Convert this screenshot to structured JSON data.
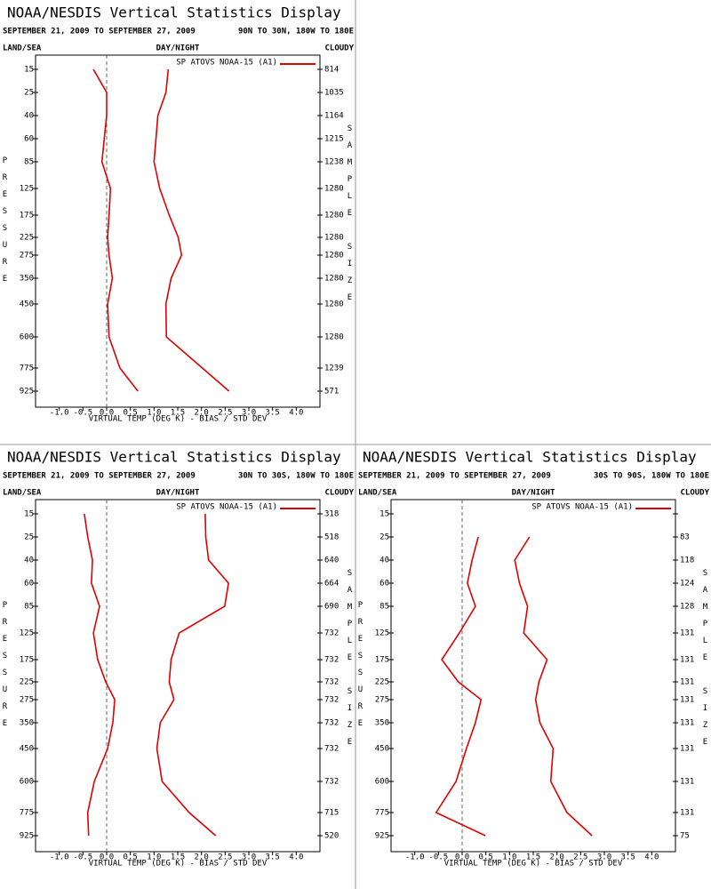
{
  "chart_data": [
    {
      "type": "line",
      "title": "NOAA/NESDIS Vertical Statistics Display",
      "subtitle": "SEPTEMBER 21, 2009 TO SEPTEMBER 27, 2009",
      "region": "90N TO 30N, 180W TO 180E",
      "land_sea": "LAND/SEA",
      "day_night": "DAY/NIGHT",
      "cloudy": "CLOUDY",
      "y_label": "PRESSURE",
      "y2_label": "SAMPLE SIZE",
      "x_label": "VIRTUAL TEMP (DEG K) - BIAS / STD DEV",
      "categories": [
        "15",
        "25",
        "40",
        "60",
        "85",
        "125",
        "175",
        "225",
        "275",
        "350",
        "450",
        "600",
        "775",
        "925"
      ],
      "sample_size": [
        814,
        1035,
        1164,
        1215,
        1238,
        1280,
        1280,
        1280,
        1280,
        1280,
        1280,
        1280,
        1239,
        571
      ],
      "series": [
        {
          "name": "SP ATOVS NOAA-15 (A1)",
          "color": "#e00000",
          "bias": [
            -0.28,
            0.0,
            0.0,
            -0.05,
            -0.1,
            0.08,
            0.05,
            0.02,
            0.05,
            0.12,
            0.02,
            0.05,
            0.28,
            0.66
          ],
          "std_dev": [
            1.3,
            1.25,
            1.08,
            1.04,
            1.0,
            1.12,
            1.32,
            1.51,
            1.58,
            1.36,
            1.25,
            1.26,
            2.02,
            2.58
          ]
        }
      ],
      "zero_line": true,
      "xlim": [
        -1.5,
        4.5
      ],
      "xticks": [
        {
          "value": -1.0,
          "label": "-1.0"
        },
        -0.5,
        {
          "value": 0.0,
          "label": "0.0"
        },
        0.5,
        {
          "value": 1.0,
          "label": "1.0"
        },
        1.5,
        {
          "value": 2.0,
          "label": "2.0"
        },
        2.5,
        {
          "value": 3.0,
          "label": "3.0"
        },
        3.5,
        {
          "value": 4.0,
          "label": "4.0"
        }
      ]
    },
    {
      "type": "line",
      "title": "NOAA/NESDIS Vertical Statistics Display",
      "subtitle": "SEPTEMBER 21, 2009 TO SEPTEMBER 27, 2009",
      "region": "30N TO 30S, 180W TO 180E",
      "land_sea": "LAND/SEA",
      "day_night": "DAY/NIGHT",
      "cloudy": "CLOUDY",
      "y_label": "PRESSURE",
      "y2_label": "SAMPLE SIZE",
      "x_label": "VIRTUAL TEMP (DEG K) - BIAS / STD DEV",
      "categories": [
        "15",
        "25",
        "40",
        "60",
        "85",
        "125",
        "175",
        "225",
        "275",
        "350",
        "450",
        "600",
        "775",
        "925"
      ],
      "sample_size": [
        318,
        518,
        640,
        664,
        690,
        732,
        732,
        732,
        732,
        732,
        732,
        732,
        715,
        520
      ],
      "series": [
        {
          "name": "SP ATOVS NOAA-15 (A1)",
          "color": "#e00000",
          "bias": [
            -0.47,
            -0.4,
            -0.3,
            -0.32,
            -0.15,
            -0.28,
            -0.19,
            -0.02,
            0.17,
            0.13,
            0.02,
            -0.26,
            -0.4,
            -0.38
          ],
          "std_dev": [
            2.08,
            2.09,
            2.15,
            2.57,
            2.49,
            1.53,
            1.36,
            1.32,
            1.42,
            1.13,
            1.06,
            1.17,
            1.74,
            2.3
          ]
        }
      ],
      "zero_line": true,
      "xlim": [
        -1.5,
        4.5
      ],
      "xticks": [
        {
          "value": -1.0,
          "label": "-1.0"
        },
        -0.5,
        {
          "value": 0.0,
          "label": "0.0"
        },
        0.5,
        {
          "value": 1.0,
          "label": "1.0"
        },
        1.5,
        {
          "value": 2.0,
          "label": "2.0"
        },
        2.5,
        {
          "value": 3.0,
          "label": "3.0"
        },
        3.5,
        {
          "value": 4.0,
          "label": "4.0"
        }
      ]
    },
    {
      "type": "line",
      "title": "NOAA/NESDIS Vertical Statistics Display",
      "subtitle": "SEPTEMBER 21, 2009 TO SEPTEMBER 27, 2009",
      "region": "30S TO 90S, 180W TO 180E",
      "land_sea": "LAND/SEA",
      "day_night": "DAY/NIGHT",
      "cloudy": "CLOUDY",
      "y_label": "PRESSURE",
      "y2_label": "SAMPLE SIZE",
      "x_label": "VIRTUAL TEMP (DEG K) - BIAS / STD DEV",
      "categories": [
        "15",
        "25",
        "40",
        "60",
        "85",
        "125",
        "175",
        "225",
        "275",
        "350",
        "450",
        "600",
        "775",
        "925"
      ],
      "sample_size": [
        null,
        83,
        118,
        124,
        128,
        131,
        131,
        131,
        131,
        131,
        131,
        131,
        131,
        75
      ],
      "series": [
        {
          "name": "SP ATOVS NOAA-15 (A1)",
          "color": "#e00000",
          "bias": [
            null,
            0.34,
            0.21,
            0.11,
            0.28,
            -0.06,
            -0.43,
            -0.08,
            0.4,
            0.28,
            0.09,
            -0.13,
            -0.55,
            0.49
          ],
          "std_dev": [
            null,
            1.42,
            1.11,
            1.21,
            1.38,
            1.3,
            1.79,
            1.62,
            1.55,
            1.64,
            1.92,
            1.87,
            2.21,
            2.74
          ]
        }
      ],
      "zero_line": true,
      "xlim": [
        -1.5,
        4.5
      ],
      "xticks": [
        {
          "value": -1.0,
          "label": "-1.0"
        },
        -0.5,
        {
          "value": 0.0,
          "label": "0.0"
        },
        0.5,
        {
          "value": 1.0,
          "label": "1.0"
        },
        1.5,
        {
          "value": 2.0,
          "label": "2.0"
        },
        2.5,
        {
          "value": 3.0,
          "label": "3.0"
        },
        3.5,
        {
          "value": 4.0,
          "label": "4.0"
        }
      ]
    }
  ]
}
